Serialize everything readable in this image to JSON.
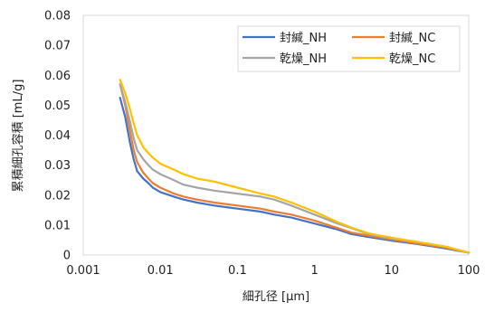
{
  "chart_data": {
    "type": "line",
    "title": "",
    "xlabel": "細孔径 [μm]",
    "ylabel": "累積細孔容積 [mL/g]",
    "xscale": "log",
    "xlim": [
      0.001,
      100
    ],
    "ylim": [
      0,
      0.08
    ],
    "grid": false,
    "legend_position": "top-right",
    "xticks": [
      "0.001",
      "0.01",
      "0.1",
      "1",
      "10",
      "100"
    ],
    "yticks": [
      "0",
      "0.01",
      "0.02",
      "0.03",
      "0.04",
      "0.05",
      "0.06",
      "0.07",
      "0.08"
    ],
    "series": [
      {
        "name": "封緘_NH",
        "color": "#4472C4",
        "x": [
          0.003,
          0.0035,
          0.004,
          0.0045,
          0.005,
          0.006,
          0.007,
          0.008,
          0.01,
          0.015,
          0.02,
          0.03,
          0.05,
          0.1,
          0.2,
          0.3,
          0.5,
          1,
          2,
          3,
          5,
          10,
          20,
          50,
          100
        ],
        "y": [
          0.0525,
          0.046,
          0.038,
          0.032,
          0.028,
          0.0255,
          0.024,
          0.0225,
          0.021,
          0.0195,
          0.0185,
          0.0175,
          0.0165,
          0.0155,
          0.0145,
          0.0135,
          0.0125,
          0.0105,
          0.0085,
          0.007,
          0.006,
          0.0048,
          0.0038,
          0.0022,
          0.0008
        ]
      },
      {
        "name": "封緘_NC",
        "color": "#ED7D31",
        "x": [
          0.003,
          0.0035,
          0.004,
          0.0045,
          0.005,
          0.006,
          0.007,
          0.008,
          0.01,
          0.015,
          0.02,
          0.03,
          0.05,
          0.1,
          0.2,
          0.3,
          0.5,
          1,
          2,
          3,
          5,
          10,
          20,
          50,
          100
        ],
        "y": [
          0.057,
          0.05,
          0.042,
          0.035,
          0.031,
          0.0275,
          0.0255,
          0.024,
          0.0225,
          0.0205,
          0.0195,
          0.0185,
          0.0175,
          0.0165,
          0.0155,
          0.0145,
          0.0135,
          0.0115,
          0.009,
          0.0075,
          0.0065,
          0.0052,
          0.004,
          0.0025,
          0.0008
        ]
      },
      {
        "name": "乾燥_NH",
        "color": "#A5A5A5",
        "x": [
          0.003,
          0.0035,
          0.004,
          0.0045,
          0.005,
          0.006,
          0.007,
          0.008,
          0.01,
          0.015,
          0.02,
          0.03,
          0.05,
          0.1,
          0.2,
          0.3,
          0.5,
          1,
          2,
          3,
          5,
          10,
          20,
          50,
          100
        ],
        "y": [
          0.057,
          0.051,
          0.045,
          0.039,
          0.035,
          0.032,
          0.03,
          0.0285,
          0.027,
          0.025,
          0.0235,
          0.0225,
          0.0215,
          0.0205,
          0.0195,
          0.0185,
          0.0165,
          0.0135,
          0.0105,
          0.009,
          0.007,
          0.0055,
          0.0045,
          0.0028,
          0.0008
        ]
      },
      {
        "name": "乾燥_NC",
        "color": "#FFC000",
        "x": [
          0.003,
          0.0035,
          0.004,
          0.0045,
          0.005,
          0.006,
          0.007,
          0.008,
          0.01,
          0.015,
          0.02,
          0.03,
          0.05,
          0.1,
          0.2,
          0.3,
          0.5,
          1,
          2,
          3,
          5,
          10,
          20,
          50,
          100
        ],
        "y": [
          0.0585,
          0.054,
          0.049,
          0.044,
          0.04,
          0.036,
          0.034,
          0.0325,
          0.0305,
          0.0285,
          0.027,
          0.0255,
          0.0245,
          0.0225,
          0.0205,
          0.0195,
          0.0175,
          0.0145,
          0.011,
          0.0092,
          0.0072,
          0.0058,
          0.0045,
          0.0028,
          0.0008
        ]
      }
    ]
  }
}
